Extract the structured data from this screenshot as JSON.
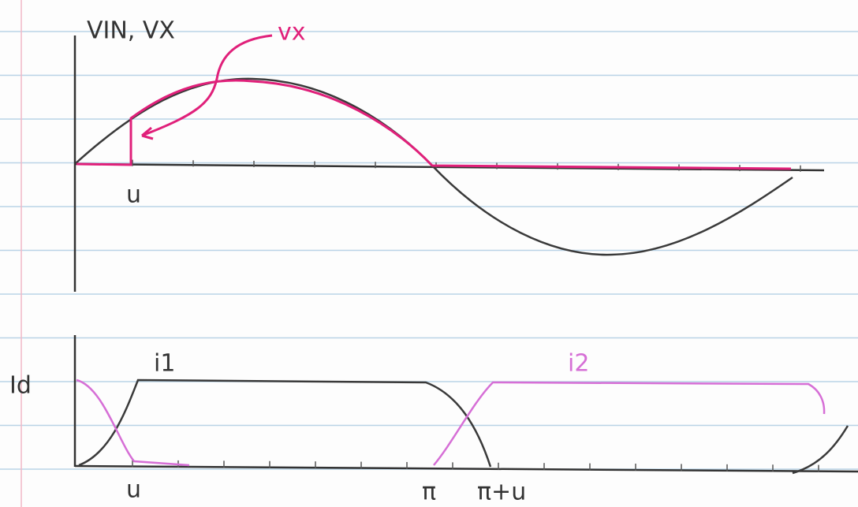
{
  "top_plot": {
    "y_label": "VIN, VX",
    "annotation": "vx",
    "x_label": "u"
  },
  "bottom_plot": {
    "y_label": "Id",
    "curve_1_label": "i1",
    "curve_2_label": "i2",
    "x_labels": [
      "u",
      "π",
      "π+u"
    ]
  }
}
